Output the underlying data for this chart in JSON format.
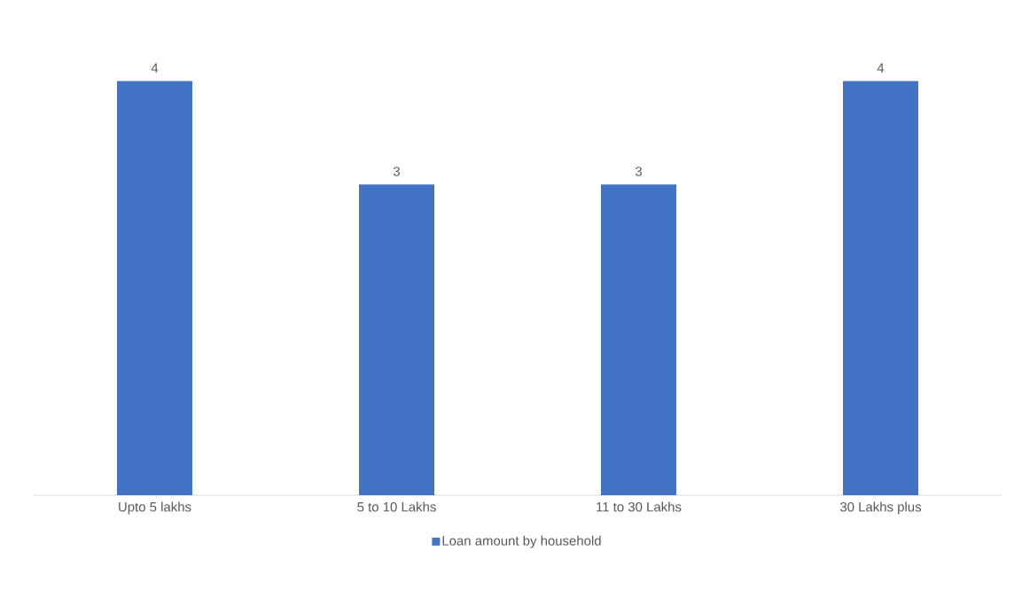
{
  "chart_data": {
    "type": "bar",
    "categories": [
      "Upto 5 lakhs",
      "5 to 10 Lakhs",
      "11 to 30 Lakhs",
      "30 Lakhs plus"
    ],
    "series": [
      {
        "name": "Loan amount by household",
        "color": "#4472c4",
        "values": [
          4,
          3,
          3,
          4
        ]
      }
    ],
    "data_labels": true,
    "legend": "bottom"
  }
}
